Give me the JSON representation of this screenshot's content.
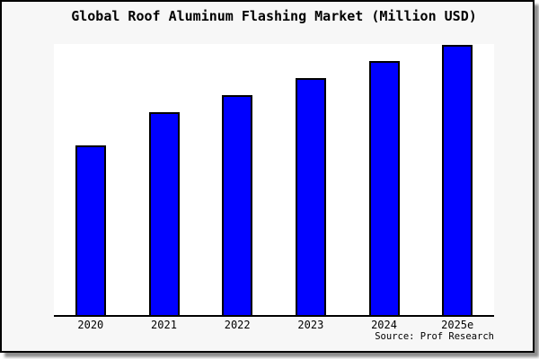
{
  "figure": {
    "title": "Global Roof Aluminum Flashing Market (Million USD)",
    "source": "Source: Prof Research"
  },
  "colors": {
    "bar_fill": "#0000ff",
    "bar_border": "#000000",
    "figure_bg": "#f7f7f7",
    "plot_bg": "#ffffff",
    "figure_border": "#000000"
  },
  "chart_data": {
    "type": "bar",
    "title": "Global Roof Aluminum Flashing Market (Million USD)",
    "categories": [
      "2020",
      "2021",
      "2022",
      "2023",
      "2024",
      "2025e"
    ],
    "values": [
      62.6,
      74.8,
      81.1,
      87.4,
      93.7,
      99.7
    ],
    "value_scale_note": "no y-axis or data labels shown; values are relative bar heights as % of plot height",
    "xlabel": "",
    "ylabel": "",
    "ylim": [
      0,
      100
    ],
    "grid": false,
    "legend": null,
    "annotations": [
      "Source: Prof Research"
    ]
  }
}
